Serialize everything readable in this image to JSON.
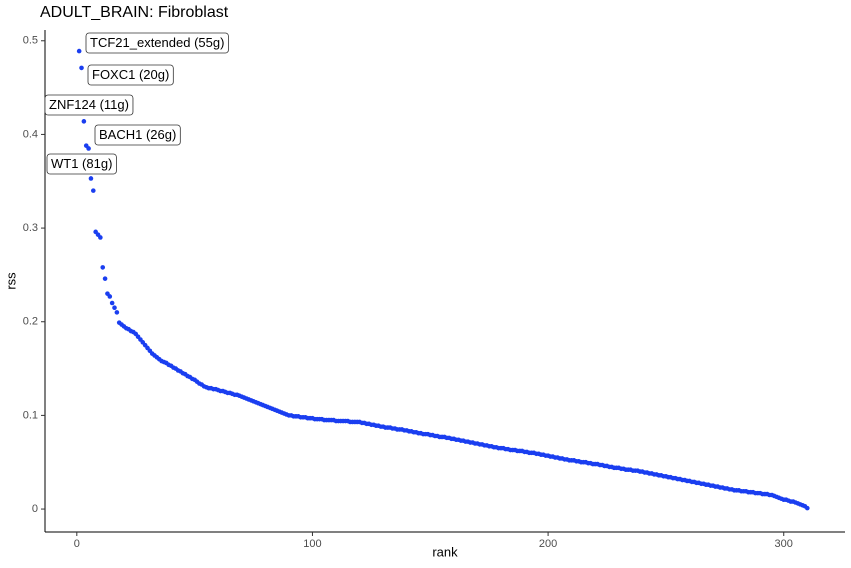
{
  "chart_data": {
    "type": "scatter",
    "title": "ADULT_BRAIN: Fibroblast",
    "x_label": "rank",
    "y_label": "rss",
    "xlim": [
      -13.5,
      326
    ],
    "ylim": [
      -0.0245,
      0.5115
    ],
    "xticks": [
      0,
      100,
      200,
      300
    ],
    "yticks": [
      0.0,
      0.1,
      0.2,
      0.3,
      0.4,
      0.5
    ],
    "grid": false,
    "annotations": [
      {
        "text": "TCF21_extended (55g)"
      },
      {
        "text": "FOXC1 (20g)"
      },
      {
        "text": "ZNF124 (11g)"
      },
      {
        "text": "BACH1 (26g)"
      },
      {
        "text": "WT1 (81g)"
      }
    ],
    "series": [
      {
        "color": "#1a3ef0",
        "x": [
          1,
          2,
          3,
          4,
          5,
          6,
          7,
          8,
          9,
          10,
          11,
          12,
          13,
          14,
          15,
          16,
          17,
          18,
          19,
          20,
          21,
          22,
          23,
          24,
          25,
          26,
          27,
          28,
          29,
          30,
          31,
          32,
          33,
          34,
          35,
          36,
          37,
          38,
          39,
          40,
          41,
          42,
          43,
          44,
          45,
          46,
          47,
          48,
          49,
          50,
          51,
          52,
          53,
          54,
          55,
          56,
          57,
          58,
          59,
          60,
          61,
          62,
          63,
          64,
          65,
          66,
          67,
          68,
          69,
          70,
          71,
          72,
          73,
          74,
          75,
          76,
          77,
          78,
          79,
          80,
          81,
          82,
          83,
          84,
          85,
          86,
          87,
          88,
          89,
          90,
          91,
          92,
          93,
          94,
          95,
          96,
          97,
          98,
          99,
          100,
          101,
          102,
          103,
          104,
          105,
          106,
          107,
          108,
          109,
          110,
          111,
          112,
          113,
          114,
          115,
          116,
          117,
          118,
          119,
          120,
          121,
          122,
          123,
          124,
          125,
          126,
          127,
          128,
          129,
          130,
          131,
          132,
          133,
          134,
          135,
          136,
          137,
          138,
          139,
          140,
          141,
          142,
          143,
          144,
          145,
          146,
          147,
          148,
          149,
          150,
          151,
          152,
          153,
          154,
          155,
          156,
          157,
          158,
          159,
          160,
          161,
          162,
          163,
          164,
          165,
          166,
          167,
          168,
          169,
          170,
          171,
          172,
          173,
          174,
          175,
          176,
          177,
          178,
          179,
          180,
          181,
          182,
          183,
          184,
          185,
          186,
          187,
          188,
          189,
          190,
          191,
          192,
          193,
          194,
          195,
          196,
          197,
          198,
          199,
          200,
          201,
          202,
          203,
          204,
          205,
          206,
          207,
          208,
          209,
          210,
          211,
          212,
          213,
          214,
          215,
          216,
          217,
          218,
          219,
          220,
          221,
          222,
          223,
          224,
          225,
          226,
          227,
          228,
          229,
          230,
          231,
          232,
          233,
          234,
          235,
          236,
          237,
          238,
          239,
          240,
          241,
          242,
          243,
          244,
          245,
          246,
          247,
          248,
          249,
          250,
          251,
          252,
          253,
          254,
          255,
          256,
          257,
          258,
          259,
          260,
          261,
          262,
          263,
          264,
          265,
          266,
          267,
          268,
          269,
          270,
          271,
          272,
          273,
          274,
          275,
          276,
          277,
          278,
          279,
          280,
          281,
          282,
          283,
          284,
          285,
          286,
          287,
          288,
          289,
          290,
          291,
          292,
          293,
          294,
          295,
          296,
          297,
          298,
          299,
          300,
          301,
          302,
          303,
          304,
          305,
          306,
          307,
          308,
          309,
          310
        ],
        "values": [
          0.489,
          0.471,
          0.414,
          0.388,
          0.385,
          0.353,
          0.34,
          0.296,
          0.293,
          0.29,
          0.258,
          0.246,
          0.23,
          0.227,
          0.22,
          0.215,
          0.21,
          0.199,
          0.197,
          0.195,
          0.193,
          0.192,
          0.19,
          0.189,
          0.187,
          0.184,
          0.181,
          0.178,
          0.175,
          0.172,
          0.169,
          0.166,
          0.164,
          0.162,
          0.16,
          0.158,
          0.157,
          0.156,
          0.154,
          0.153,
          0.151,
          0.15,
          0.148,
          0.147,
          0.145,
          0.144,
          0.142,
          0.141,
          0.139,
          0.138,
          0.136,
          0.134,
          0.133,
          0.131,
          0.13,
          0.129,
          0.129,
          0.128,
          0.128,
          0.127,
          0.126,
          0.126,
          0.125,
          0.124,
          0.124,
          0.123,
          0.122,
          0.122,
          0.121,
          0.12,
          0.119,
          0.118,
          0.117,
          0.116,
          0.115,
          0.114,
          0.113,
          0.112,
          0.111,
          0.11,
          0.109,
          0.108,
          0.107,
          0.106,
          0.105,
          0.104,
          0.103,
          0.102,
          0.101,
          0.1,
          0.1,
          0.099,
          0.099,
          0.099,
          0.098,
          0.098,
          0.098,
          0.097,
          0.097,
          0.097,
          0.096,
          0.096,
          0.096,
          0.096,
          0.095,
          0.095,
          0.095,
          0.095,
          0.095,
          0.094,
          0.094,
          0.094,
          0.094,
          0.094,
          0.094,
          0.093,
          0.093,
          0.093,
          0.093,
          0.093,
          0.092,
          0.092,
          0.091,
          0.091,
          0.09,
          0.09,
          0.089,
          0.089,
          0.088,
          0.088,
          0.087,
          0.087,
          0.087,
          0.086,
          0.086,
          0.085,
          0.085,
          0.085,
          0.084,
          0.084,
          0.083,
          0.083,
          0.082,
          0.082,
          0.081,
          0.081,
          0.08,
          0.08,
          0.08,
          0.079,
          0.079,
          0.078,
          0.078,
          0.077,
          0.077,
          0.077,
          0.076,
          0.076,
          0.075,
          0.075,
          0.074,
          0.074,
          0.073,
          0.073,
          0.072,
          0.072,
          0.071,
          0.071,
          0.07,
          0.07,
          0.069,
          0.069,
          0.068,
          0.068,
          0.067,
          0.067,
          0.066,
          0.066,
          0.065,
          0.065,
          0.065,
          0.064,
          0.064,
          0.063,
          0.063,
          0.063,
          0.062,
          0.062,
          0.062,
          0.061,
          0.061,
          0.06,
          0.06,
          0.06,
          0.059,
          0.059,
          0.058,
          0.058,
          0.057,
          0.057,
          0.056,
          0.056,
          0.055,
          0.055,
          0.054,
          0.054,
          0.053,
          0.053,
          0.052,
          0.052,
          0.052,
          0.051,
          0.051,
          0.05,
          0.05,
          0.05,
          0.049,
          0.049,
          0.048,
          0.048,
          0.048,
          0.047,
          0.047,
          0.046,
          0.046,
          0.045,
          0.045,
          0.044,
          0.044,
          0.044,
          0.043,
          0.043,
          0.042,
          0.042,
          0.042,
          0.041,
          0.041,
          0.041,
          0.04,
          0.04,
          0.039,
          0.039,
          0.038,
          0.038,
          0.037,
          0.037,
          0.036,
          0.036,
          0.035,
          0.035,
          0.034,
          0.034,
          0.033,
          0.033,
          0.032,
          0.032,
          0.031,
          0.031,
          0.03,
          0.03,
          0.029,
          0.029,
          0.028,
          0.028,
          0.027,
          0.027,
          0.026,
          0.026,
          0.025,
          0.025,
          0.024,
          0.024,
          0.023,
          0.023,
          0.022,
          0.022,
          0.021,
          0.021,
          0.02,
          0.02,
          0.02,
          0.019,
          0.019,
          0.019,
          0.018,
          0.018,
          0.018,
          0.017,
          0.017,
          0.017,
          0.016,
          0.016,
          0.016,
          0.015,
          0.015,
          0.014,
          0.013,
          0.012,
          0.011,
          0.01,
          0.01,
          0.009,
          0.008,
          0.008,
          0.007,
          0.006,
          0.005,
          0.004,
          0.003,
          0.001
        ]
      }
    ]
  }
}
